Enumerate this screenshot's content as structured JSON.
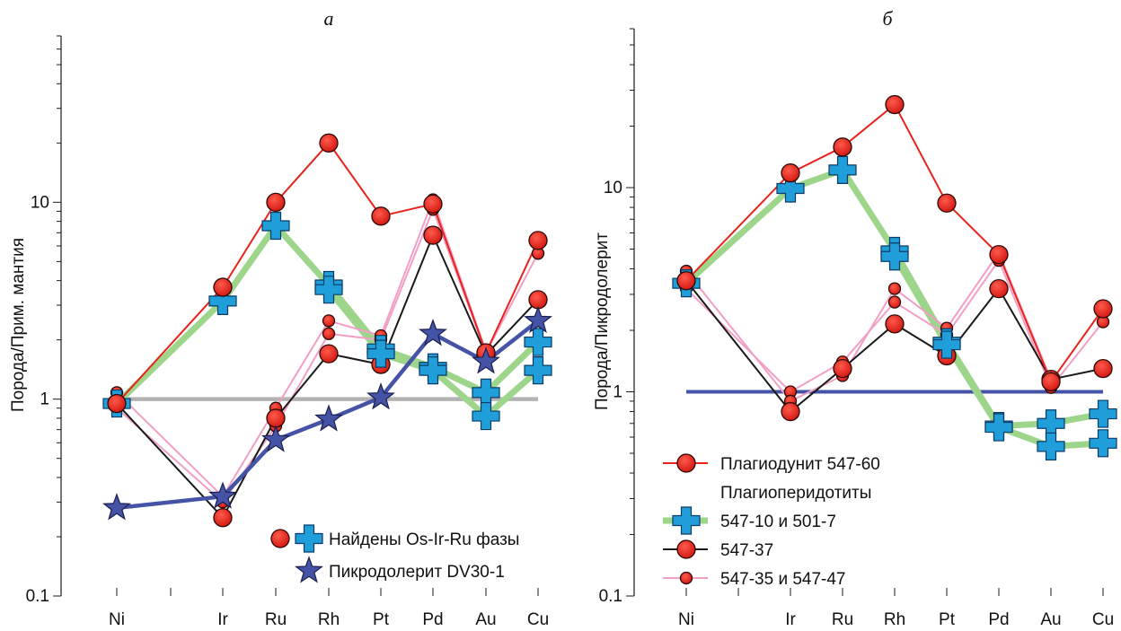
{
  "chart_data": [
    {
      "type": "line",
      "panel_label": "а",
      "ylabel": "Порода/Прим. мантия",
      "yscale": "log",
      "ylim": [
        0.1,
        70
      ],
      "yticks": [
        {
          "value": 0.1,
          "label": "0.1"
        },
        {
          "value": 1,
          "label": "1"
        },
        {
          "value": 10,
          "label": "10"
        }
      ],
      "categories": [
        "Ni",
        "Ir",
        "Ru",
        "Rh",
        "Pt",
        "Pd",
        "Au",
        "Cu"
      ],
      "reference_line": {
        "value": 1,
        "color": "#b3b3b3"
      },
      "series": [
        {
          "key": "pink1",
          "line_color": "#f29fc5",
          "marker": "circle-small",
          "values": [
            0.9,
            0.3,
            0.73,
            2.15,
            2.0,
            9.2,
            1.72,
            5.5
          ]
        },
        {
          "key": "pink2",
          "line_color": "#f29fc5",
          "marker": "circle-small",
          "values": [
            1.08,
            0.32,
            0.9,
            2.5,
            2.1,
            10.3,
            1.75,
            null
          ]
        },
        {
          "key": "black",
          "line_color": "#1a1a1a",
          "marker": "circle",
          "values": [
            0.95,
            0.25,
            0.8,
            1.7,
            1.5,
            6.8,
            1.68,
            3.2
          ]
        },
        {
          "key": "green1",
          "line_color": "#9dd58a",
          "marker": "cross",
          "values": [
            0.95,
            3.15,
            7.6,
            3.8,
            1.8,
            1.45,
            1.08,
            1.95
          ]
        },
        {
          "key": "green2",
          "line_color": "#9dd58a",
          "marker": "cross",
          "values": [
            null,
            null,
            null,
            3.6,
            1.7,
            1.4,
            0.82,
            1.4
          ]
        },
        {
          "key": "red",
          "line_color": "#e8231b",
          "marker": "circle",
          "values": [
            0.95,
            3.7,
            10.0,
            20.0,
            8.5,
            9.8,
            1.72,
            6.4
          ]
        },
        {
          "key": "blue",
          "line_color": "#4453a6",
          "marker": "star",
          "values": [
            0.28,
            0.32,
            0.62,
            0.79,
            1.02,
            2.15,
            1.55,
            2.5
          ]
        }
      ],
      "legend": [
        {
          "symbols": [
            "circle",
            "cross"
          ],
          "label": "Найдены Os-Ir-Ru фазы"
        },
        {
          "symbols": [
            "star"
          ],
          "label": "Пикродолерит DV30-1"
        }
      ]
    },
    {
      "type": "line",
      "panel_label": "б",
      "ylabel": "Порода/Пикродолерит",
      "yscale": "log",
      "ylim": [
        0.1,
        60
      ],
      "yticks": [
        {
          "value": 0.1,
          "label": "0.1"
        },
        {
          "value": 1,
          "label": "1"
        },
        {
          "value": 10,
          "label": "10"
        }
      ],
      "categories": [
        "Ni",
        "Ir",
        "Ru",
        "Rh",
        "Pt",
        "Pd",
        "Au",
        "Cu"
      ],
      "reference_line": {
        "value": 1,
        "color": "#4453a6"
      },
      "series": [
        {
          "key": "pink1",
          "line_color": "#f29fc5",
          "marker": "circle-small",
          "values": [
            3.2,
            1.0,
            1.4,
            2.75,
            1.9,
            4.4,
            1.05,
            2.2
          ]
        },
        {
          "key": "pink2",
          "line_color": "#f29fc5",
          "marker": "circle-small",
          "values": [
            3.9,
            0.9,
            1.2,
            3.2,
            2.05,
            4.8,
            1.15,
            null
          ]
        },
        {
          "key": "black",
          "line_color": "#1a1a1a",
          "marker": "circle",
          "values": [
            3.5,
            0.8,
            1.3,
            2.15,
            1.5,
            3.2,
            1.15,
            1.3
          ]
        },
        {
          "key": "green1",
          "line_color": "#9dd58a",
          "marker": "cross",
          "values": [
            3.4,
            9.9,
            12.2,
            4.9,
            1.75,
            0.68,
            0.7,
            0.78
          ]
        },
        {
          "key": "green2",
          "line_color": "#9dd58a",
          "marker": "cross",
          "values": [
            null,
            null,
            null,
            4.6,
            1.7,
            0.67,
            0.54,
            0.56
          ]
        },
        {
          "key": "red",
          "line_color": "#e8231b",
          "marker": "circle",
          "values": [
            3.5,
            11.8,
            15.8,
            25.5,
            8.4,
            4.7,
            1.12,
            2.55
          ]
        }
      ],
      "legend": [
        {
          "symbols": [
            "line-red",
            "circle"
          ],
          "label": "Плагиодунит 547-60"
        },
        {
          "symbols": [],
          "label": "Плагиоперидотиты"
        },
        {
          "symbols": [
            "line-green",
            "cross"
          ],
          "label": "547-10 и 501-7"
        },
        {
          "symbols": [
            "line-black",
            "circle"
          ],
          "label": "547-37"
        },
        {
          "symbols": [
            "line-pink",
            "circle-small"
          ],
          "label": "547-35 и 547-47"
        }
      ]
    }
  ],
  "colors": {
    "red_marker": "#e8231b",
    "cross": "#1f9ed9",
    "star": "#4453a6",
    "axis": "#1a1a1a"
  }
}
